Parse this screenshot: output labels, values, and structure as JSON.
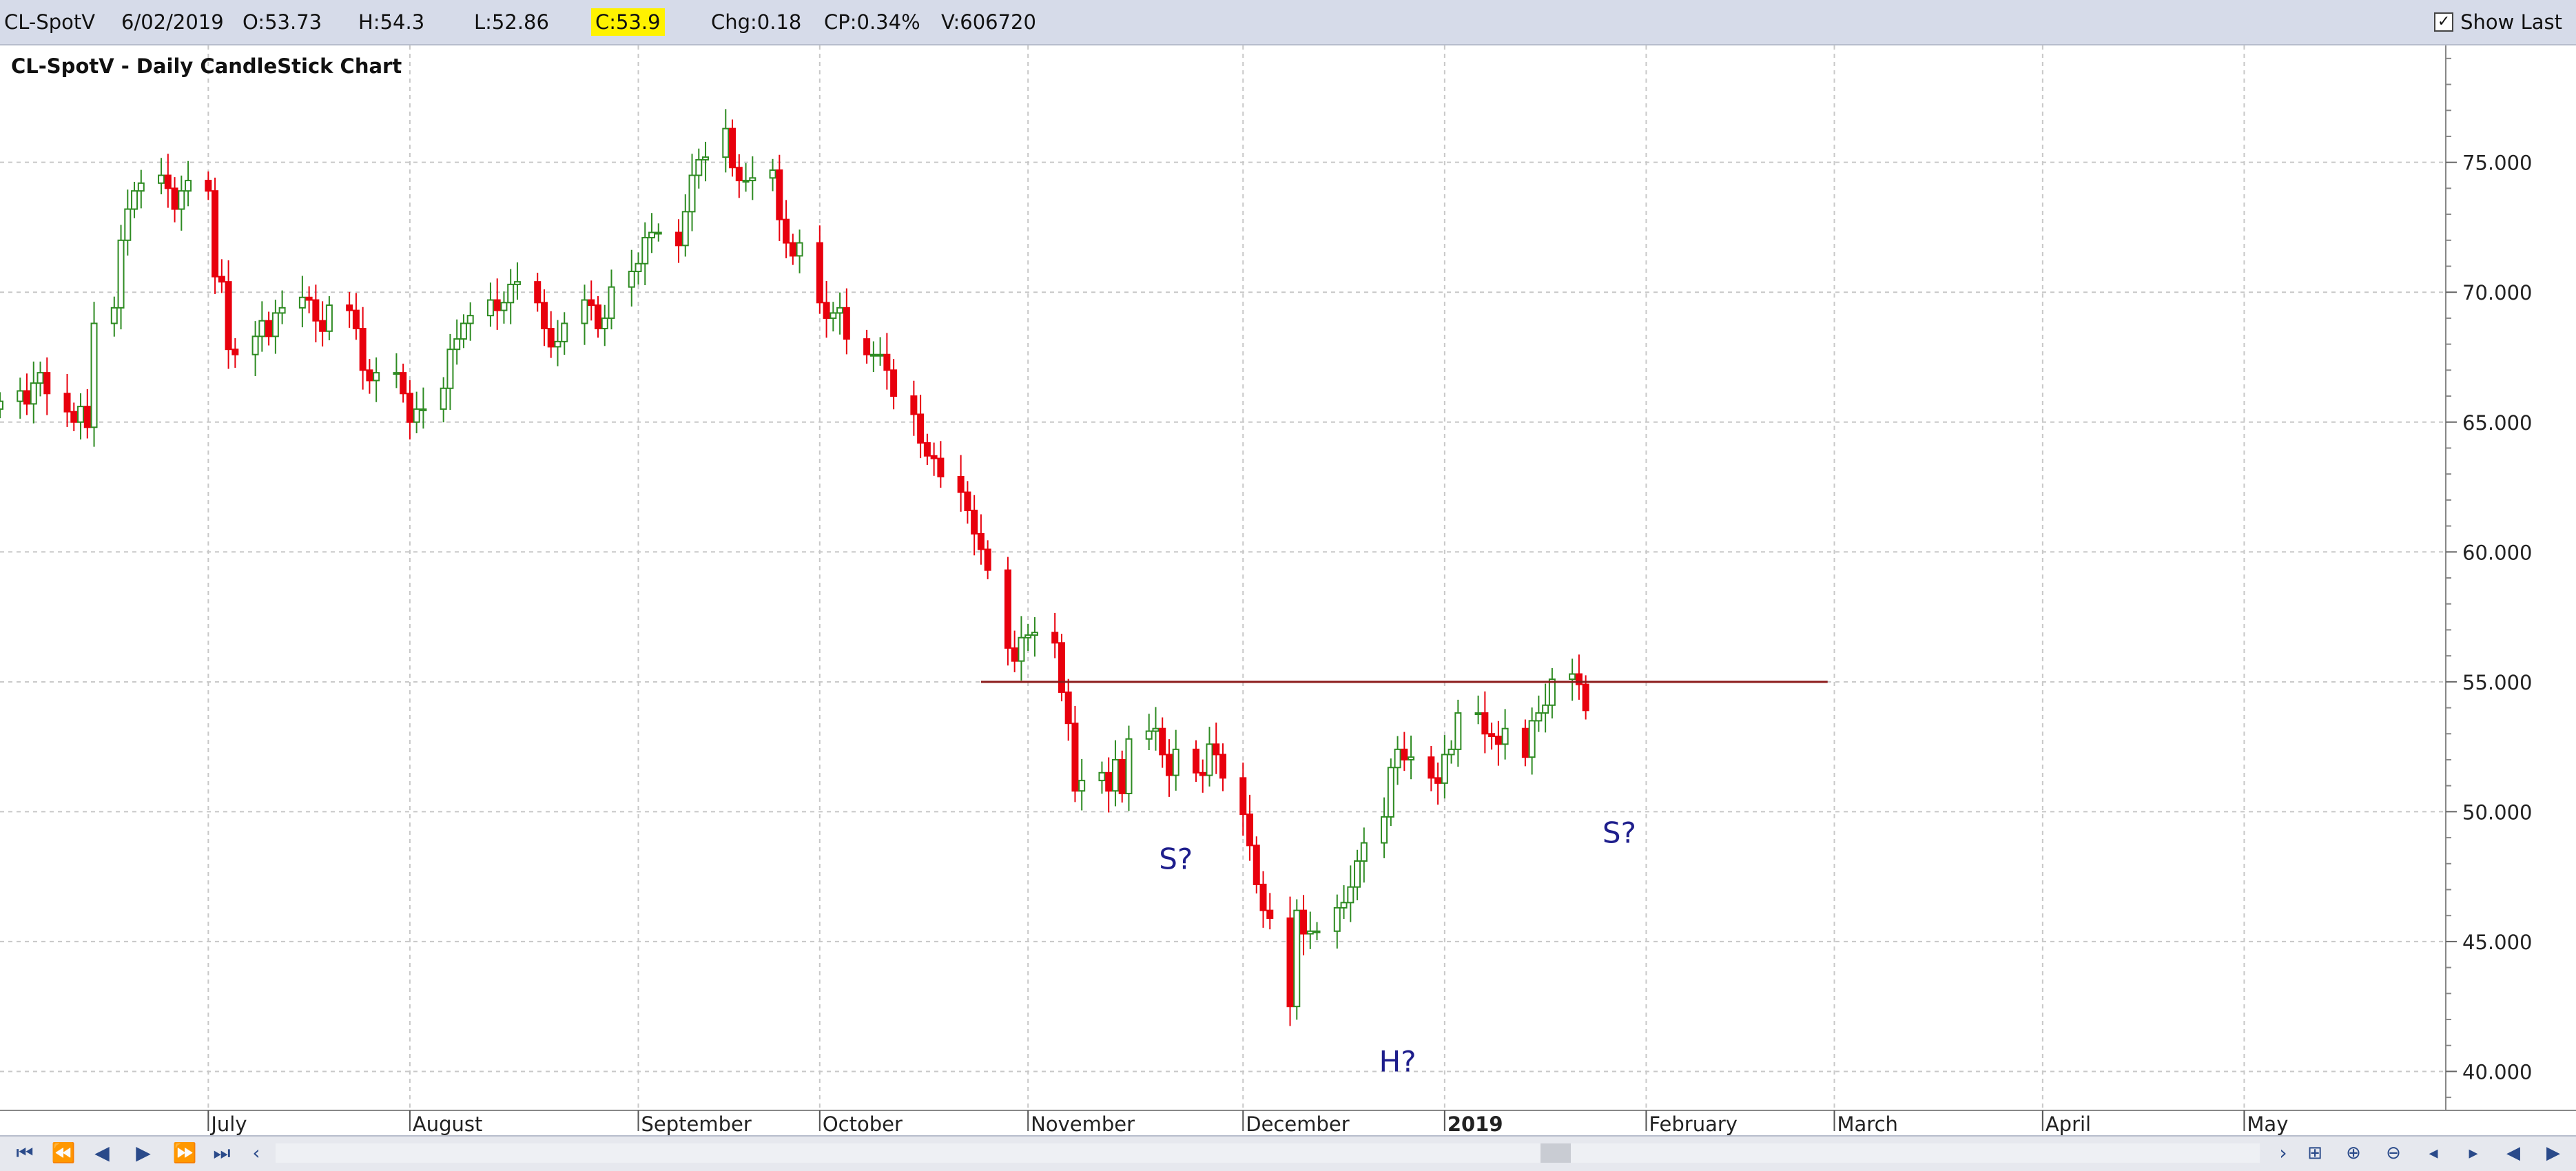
{
  "header": {
    "symbol": "CL-SpotV",
    "date": "6/02/2019",
    "open": "O:53.73",
    "high": "H:54.3",
    "low": "L:52.86",
    "close": "C:53.9",
    "change": "Chg:0.18",
    "change_pct": "CP:0.34%",
    "volume": "V:606720",
    "show_last_label": "Show Last",
    "show_last_checked": true
  },
  "colors": {
    "up": "#2e8b22",
    "down": "#e8000d",
    "resistance": "#8b1a1a",
    "annotation": "#1e1e8c",
    "grid": "#c8c8c8",
    "close_highlight": "#fff200"
  },
  "icons": {
    "nav_first": "first-icon",
    "nav_fast_back": "fast-back-icon",
    "nav_back": "back-icon",
    "nav_forward": "forward-icon",
    "nav_fast_forward": "fast-forward-icon",
    "nav_last": "last-icon",
    "scroll_left": "chevron-left-icon",
    "scroll_right": "chevron-right-icon"
  },
  "chart_data": {
    "type": "candlestick",
    "title": "CL-SpotV - Daily CandleStick Chart",
    "ylim": [
      38.5,
      79.5
    ],
    "y_ticks": [
      "40.000",
      "45.000",
      "50.000",
      "55.000",
      "60.000",
      "65.000",
      "70.000",
      "75.000"
    ],
    "x_start": "2018-06-01",
    "x_end": "2019-05-31",
    "month_labels": [
      {
        "label": "July",
        "date": "2018-07-02",
        "bold": false
      },
      {
        "label": "August",
        "date": "2018-08-01",
        "bold": false
      },
      {
        "label": "September",
        "date": "2018-09-04",
        "bold": false
      },
      {
        "label": "October",
        "date": "2018-10-01",
        "bold": false
      },
      {
        "label": "November",
        "date": "2018-11-01",
        "bold": false
      },
      {
        "label": "December",
        "date": "2018-12-03",
        "bold": false
      },
      {
        "label": "2019",
        "date": "2019-01-02",
        "bold": true
      },
      {
        "label": "February",
        "date": "2019-02-01",
        "bold": false
      },
      {
        "label": "March",
        "date": "2019-03-01",
        "bold": false
      },
      {
        "label": "April",
        "date": "2019-04-01",
        "bold": false
      },
      {
        "label": "May",
        "date": "2019-05-01",
        "bold": false
      }
    ],
    "resistance_line": {
      "value": 55.0,
      "from": "2018-10-25",
      "to": "2019-02-28"
    },
    "annotations": [
      {
        "text": "S?",
        "date": "2018-11-23",
        "value": 47.8
      },
      {
        "text": "H?",
        "date": "2018-12-26",
        "value": 40.0
      },
      {
        "text": "S?",
        "date": "2019-01-28",
        "value": 48.8
      }
    ],
    "closes": [
      65.8,
      66.2,
      65.7,
      66.5,
      66.9,
      66.1,
      65.4,
      65.0,
      65.6,
      64.8,
      68.8,
      69.4,
      72.0,
      73.2,
      73.9,
      74.2,
      74.5,
      74.0,
      73.2,
      73.9,
      74.3,
      73.9,
      70.6,
      70.4,
      67.8,
      67.6,
      68.3,
      68.9,
      68.3,
      69.2,
      69.4,
      69.8,
      69.7,
      68.9,
      68.5,
      69.5,
      69.3,
      68.6,
      67.0,
      66.6,
      66.9,
      66.9,
      66.1,
      65.0,
      65.5,
      65.5,
      66.3,
      67.8,
      68.2,
      68.8,
      69.1,
      69.7,
      69.3,
      69.6,
      70.3,
      70.4,
      69.6,
      68.6,
      67.9,
      68.1,
      68.8,
      69.7,
      69.5,
      68.6,
      69.0,
      70.2,
      70.8,
      71.1,
      72.1,
      72.3,
      72.3,
      71.8,
      73.1,
      74.5,
      75.1,
      75.2,
      76.3,
      74.8,
      74.3,
      74.3,
      74.4,
      74.7,
      72.8,
      71.9,
      71.4,
      71.9,
      69.6,
      69.0,
      69.2,
      69.4,
      68.2,
      67.6,
      67.6,
      67.6,
      67.0,
      66.0,
      65.3,
      64.2,
      63.7,
      63.6,
      62.9,
      62.3,
      61.6,
      60.7,
      60.1,
      59.3,
      56.3,
      55.8,
      56.7,
      56.8,
      56.9,
      56.5,
      54.6,
      53.4,
      50.8,
      51.2,
      51.5,
      50.8,
      52.0,
      50.7,
      52.8,
      53.1,
      53.2,
      52.2,
      51.4,
      52.4,
      51.5,
      51.4,
      52.6,
      52.2,
      51.3,
      49.9,
      48.7,
      47.2,
      46.2,
      45.9,
      42.5,
      46.2,
      45.3,
      45.4,
      45.4,
      46.3,
      46.5,
      47.1,
      48.1,
      48.8,
      49.8,
      51.7,
      52.4,
      52.0,
      52.1,
      51.3,
      51.1,
      52.2,
      52.4,
      53.8,
      53.8,
      53.0,
      52.9,
      52.6,
      53.2,
      52.1,
      53.5,
      53.8,
      54.1,
      55.1,
      55.3,
      54.9,
      53.9
    ]
  }
}
